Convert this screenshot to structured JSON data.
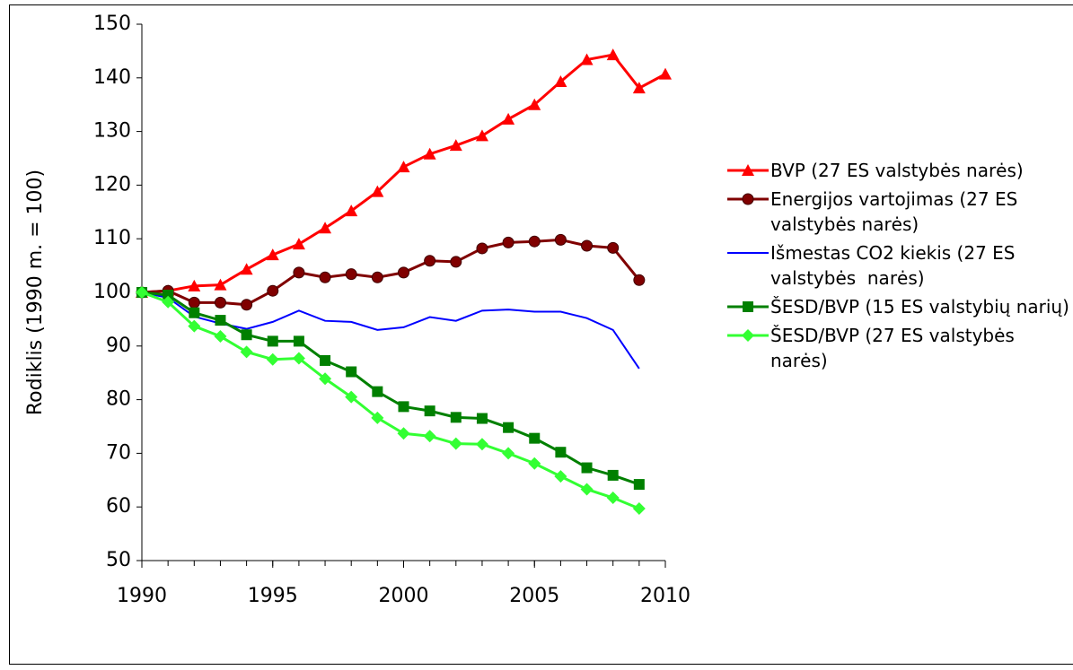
{
  "chart_data": {
    "type": "line",
    "y_label": "Rodiklis (1990 m. = 100)",
    "x": [
      1990,
      1991,
      1992,
      1993,
      1994,
      1995,
      1996,
      1997,
      1998,
      1999,
      2000,
      2001,
      2002,
      2003,
      2004,
      2005,
      2006,
      2007,
      2008,
      2009,
      2010
    ],
    "xlim": [
      1990,
      2010
    ],
    "xticks": [
      1990,
      1995,
      2000,
      2005,
      2010
    ],
    "ylim": [
      50,
      150
    ],
    "yticks": [
      50,
      60,
      70,
      80,
      90,
      100,
      110,
      120,
      130,
      140,
      150
    ],
    "series": [
      {
        "name": "BVP (27 ES valstybės narės)",
        "color": "#ff0000",
        "marker": "triangle",
        "values": [
          100,
          100.3,
          101.2,
          101.4,
          104.3,
          107,
          109,
          112,
          115.2,
          118.8,
          123.4,
          125.8,
          127.4,
          129.2,
          132.3,
          135,
          139.3,
          143.4,
          144.3,
          138.1,
          140.7
        ]
      },
      {
        "name": "Energijos vartojimas (27 ES valstybės narės)",
        "color": "#800000",
        "marker": "circle",
        "values": [
          100,
          100.3,
          98.1,
          98.1,
          97.7,
          100.3,
          103.7,
          102.8,
          103.4,
          102.8,
          103.7,
          105.9,
          105.7,
          108.2,
          109.3,
          109.5,
          109.8,
          108.7,
          108.3,
          102.3,
          null
        ]
      },
      {
        "name": "Išmestas CO2 kiekis (27 ES valstybės  narės)",
        "color": "#0000ff",
        "marker": "none",
        "values": [
          100,
          99,
          95.5,
          94.2,
          93.2,
          94.5,
          96.6,
          94.7,
          94.5,
          93,
          93.5,
          95.4,
          94.7,
          96.6,
          96.8,
          96.4,
          96.4,
          95.2,
          93,
          85.8,
          null
        ]
      },
      {
        "name": "ŠESD/BVP (15 ES valstybių narių)",
        "color": "#008000",
        "marker": "square",
        "values": [
          100,
          99.5,
          96.2,
          94.8,
          92.1,
          90.9,
          90.9,
          87.3,
          85.2,
          81.5,
          78.7,
          77.9,
          76.7,
          76.5,
          74.8,
          72.8,
          70.2,
          67.3,
          65.9,
          64.2,
          null
        ]
      },
      {
        "name": "ŠESD/BVP (27 ES valstybės narės)",
        "color": "#33ff33",
        "marker": "diamond",
        "values": [
          100,
          98.2,
          93.7,
          91.8,
          88.9,
          87.5,
          87.7,
          83.9,
          80.5,
          76.6,
          73.7,
          73.2,
          71.8,
          71.7,
          70,
          68.1,
          65.7,
          63.3,
          61.7,
          59.7,
          null
        ]
      }
    ]
  }
}
